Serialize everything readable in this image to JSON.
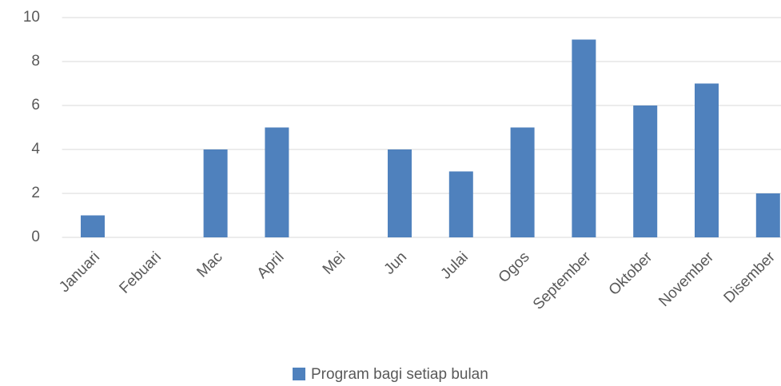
{
  "chart_data": {
    "type": "bar",
    "categories": [
      "Januari",
      "Febuari",
      "Mac",
      "April",
      "Mei",
      "Jun",
      "Julai",
      "Ogos",
      "September",
      "Oktober",
      "November",
      "Disember"
    ],
    "series": [
      {
        "name": "Program bagi setiap bulan",
        "color": "#4f81bd",
        "values": [
          1,
          0,
          4,
          5,
          0,
          4,
          3,
          5,
          9,
          6,
          7,
          2
        ]
      }
    ],
    "ylim": [
      0,
      10
    ],
    "yticks": [
      0,
      2,
      4,
      6,
      8,
      10
    ],
    "grid": true,
    "legend": "bottom"
  }
}
